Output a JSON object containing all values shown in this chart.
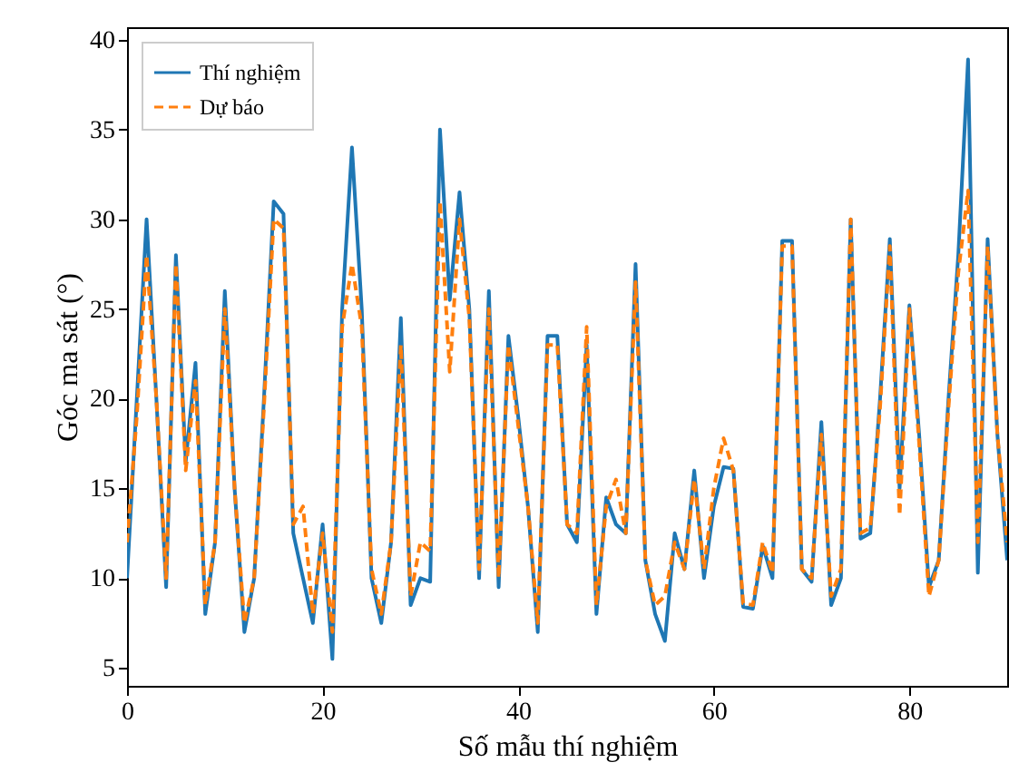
{
  "chart_data": {
    "type": "line",
    "xlabel": "Số mẫu thí nghiệm",
    "ylabel": "Góc ma sát (°)",
    "xlim": [
      0,
      90
    ],
    "xticks": [
      0,
      20,
      40,
      60,
      80
    ],
    "ylim": [
      4,
      40.7
    ],
    "yticks": [
      5,
      10,
      15,
      20,
      25,
      30,
      35,
      40
    ],
    "grid": false,
    "legend": "top left",
    "marker": "none",
    "x": [
      0,
      1,
      2,
      3,
      4,
      5,
      6,
      7,
      8,
      9,
      10,
      11,
      12,
      13,
      14,
      15,
      16,
      17,
      18,
      19,
      20,
      21,
      22,
      23,
      24,
      25,
      26,
      27,
      28,
      29,
      30,
      31,
      32,
      33,
      34,
      35,
      36,
      37,
      38,
      39,
      40,
      41,
      42,
      43,
      44,
      45,
      46,
      47,
      48,
      49,
      50,
      51,
      52,
      53,
      54,
      55,
      56,
      57,
      58,
      59,
      60,
      61,
      62,
      63,
      64,
      65,
      66,
      67,
      68,
      69,
      70,
      71,
      72,
      73,
      74,
      75,
      76,
      77,
      78,
      79,
      80,
      81,
      82,
      83,
      84,
      85,
      86,
      87,
      88,
      89,
      90
    ],
    "series": [
      {
        "name": "Thí nghiệm",
        "color": "#1f77b4",
        "line_style": "solid",
        "values": [
          10,
          20,
          30,
          20,
          9.5,
          28,
          16.5,
          22,
          8,
          12,
          26,
          15,
          7,
          10,
          20,
          31,
          30.3,
          12.5,
          10,
          7.5,
          13,
          5.5,
          25,
          34,
          25,
          10,
          7.5,
          12,
          24.5,
          8.5,
          10,
          9.8,
          35,
          25.5,
          31.5,
          25,
          10,
          26,
          9.5,
          23.5,
          19,
          14,
          7,
          23.5,
          23.5,
          13,
          12,
          23,
          8,
          14.5,
          13,
          12.5,
          27.5,
          11,
          8,
          6.5,
          12.5,
          10.5,
          16,
          10,
          14,
          16.2,
          16.1,
          8.4,
          8.3,
          11.8,
          10,
          28.8,
          28.8,
          10.5,
          9.8,
          18.7,
          8.5,
          10,
          30,
          12.2,
          12.5,
          20,
          28.9,
          15,
          25.2,
          18,
          9.5,
          11,
          20,
          28,
          38.9,
          10.3,
          28.9,
          18,
          11
        ]
      },
      {
        "name": "Dự báo",
        "color": "#ff7f0e",
        "line_style": "dashed",
        "values": [
          12,
          19,
          28,
          20,
          10,
          27.5,
          16,
          21,
          8.5,
          12,
          25,
          15,
          7.5,
          10,
          19.5,
          30,
          29.5,
          13,
          14,
          8,
          12.5,
          7,
          24,
          27.5,
          24,
          10.5,
          8,
          12,
          23,
          9,
          12,
          11.5,
          31,
          21.5,
          30,
          24.5,
          10.5,
          25,
          10,
          23,
          18.5,
          14,
          7.5,
          23,
          23,
          13,
          12.5,
          24,
          8.5,
          14,
          15.5,
          12.5,
          26.5,
          11,
          8.5,
          9,
          12,
          10.5,
          15.5,
          10.5,
          15,
          17.8,
          16,
          8.6,
          8.5,
          12,
          10.3,
          28.5,
          28.5,
          10.5,
          10,
          18,
          9,
          10.5,
          30,
          12.5,
          12.8,
          19.5,
          28.5,
          13.5,
          25,
          17.5,
          9,
          11,
          19.5,
          27,
          31.6,
          12,
          28.5,
          18,
          12
        ]
      }
    ]
  }
}
